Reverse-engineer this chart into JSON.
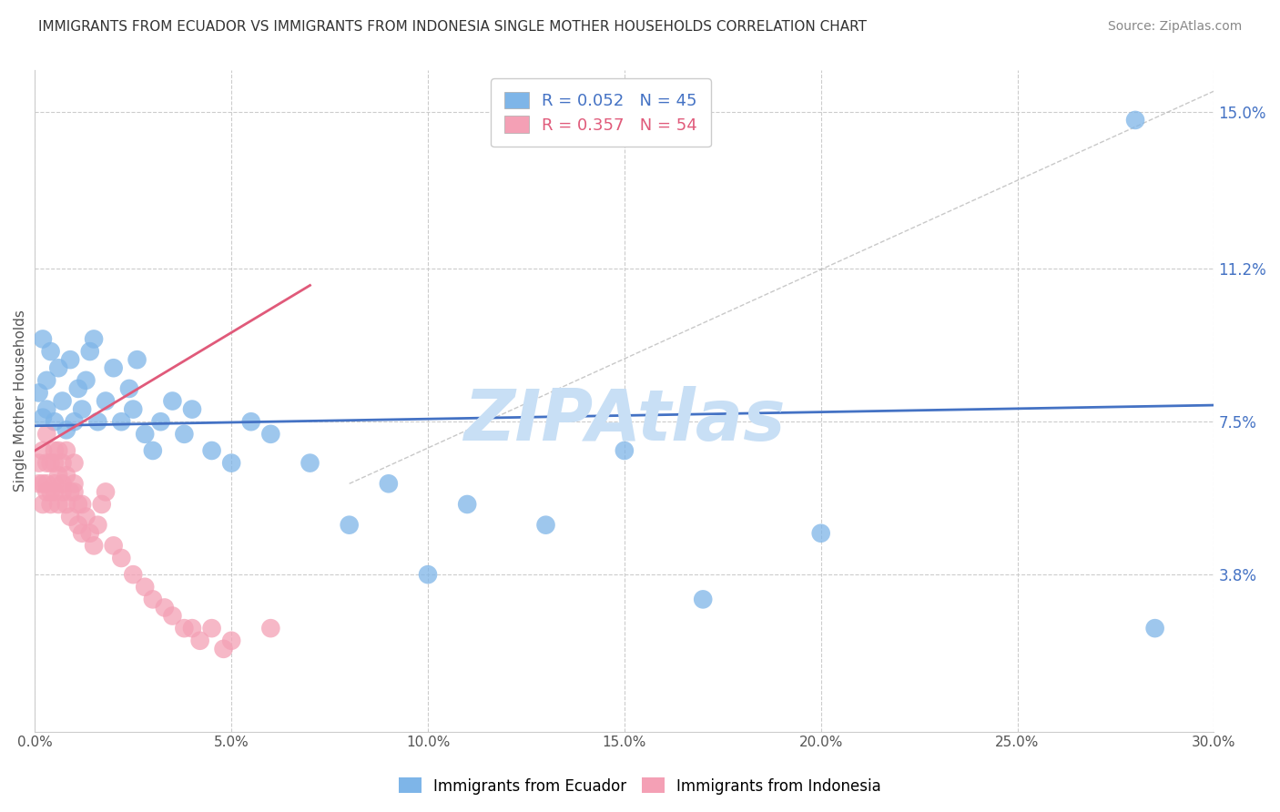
{
  "title": "IMMIGRANTS FROM ECUADOR VS IMMIGRANTS FROM INDONESIA SINGLE MOTHER HOUSEHOLDS CORRELATION CHART",
  "source": "Source: ZipAtlas.com",
  "ylabel": "Single Mother Households",
  "xlim": [
    0.0,
    0.3
  ],
  "ylim": [
    0.0,
    0.16
  ],
  "xticks": [
    0.0,
    0.05,
    0.1,
    0.15,
    0.2,
    0.25,
    0.3
  ],
  "xticklabels": [
    "0.0%",
    "5.0%",
    "10.0%",
    "15.0%",
    "20.0%",
    "25.0%",
    "30.0%"
  ],
  "yticks_right": [
    0.038,
    0.075,
    0.112,
    0.15
  ],
  "yticks_right_labels": [
    "3.8%",
    "7.5%",
    "11.2%",
    "15.0%"
  ],
  "grid_color": "#cccccc",
  "background_color": "#ffffff",
  "ecuador_color": "#7eb5e8",
  "indonesia_color": "#f4a0b5",
  "ecuador_line_color": "#4472c4",
  "indonesia_line_color": "#e05a7a",
  "legend_ecuador_label": "R = 0.052   N = 45",
  "legend_indonesia_label": "R = 0.357   N = 54",
  "watermark": "ZIPAtlas",
  "watermark_color": "#c8dff5",
  "ecuador_x": [
    0.001,
    0.002,
    0.002,
    0.003,
    0.003,
    0.004,
    0.005,
    0.006,
    0.007,
    0.008,
    0.009,
    0.01,
    0.011,
    0.012,
    0.013,
    0.014,
    0.015,
    0.016,
    0.018,
    0.02,
    0.022,
    0.024,
    0.025,
    0.026,
    0.028,
    0.03,
    0.032,
    0.035,
    0.038,
    0.04,
    0.045,
    0.05,
    0.055,
    0.06,
    0.07,
    0.08,
    0.09,
    0.1,
    0.11,
    0.13,
    0.15,
    0.17,
    0.2,
    0.28,
    0.285
  ],
  "ecuador_y": [
    0.082,
    0.076,
    0.095,
    0.078,
    0.085,
    0.092,
    0.075,
    0.088,
    0.08,
    0.073,
    0.09,
    0.075,
    0.083,
    0.078,
    0.085,
    0.092,
    0.095,
    0.075,
    0.08,
    0.088,
    0.075,
    0.083,
    0.078,
    0.09,
    0.072,
    0.068,
    0.075,
    0.08,
    0.072,
    0.078,
    0.068,
    0.065,
    0.075,
    0.072,
    0.065,
    0.05,
    0.06,
    0.038,
    0.055,
    0.05,
    0.068,
    0.032,
    0.048,
    0.148,
    0.025
  ],
  "indonesia_x": [
    0.001,
    0.001,
    0.002,
    0.002,
    0.002,
    0.003,
    0.003,
    0.003,
    0.003,
    0.004,
    0.004,
    0.004,
    0.005,
    0.005,
    0.005,
    0.005,
    0.006,
    0.006,
    0.006,
    0.007,
    0.007,
    0.007,
    0.008,
    0.008,
    0.008,
    0.009,
    0.009,
    0.01,
    0.01,
    0.01,
    0.011,
    0.011,
    0.012,
    0.012,
    0.013,
    0.014,
    0.015,
    0.016,
    0.017,
    0.018,
    0.02,
    0.022,
    0.025,
    0.028,
    0.03,
    0.033,
    0.035,
    0.038,
    0.04,
    0.042,
    0.045,
    0.048,
    0.05,
    0.06
  ],
  "indonesia_y": [
    0.06,
    0.065,
    0.06,
    0.068,
    0.055,
    0.065,
    0.06,
    0.072,
    0.058,
    0.065,
    0.058,
    0.055,
    0.065,
    0.06,
    0.068,
    0.058,
    0.062,
    0.068,
    0.055,
    0.06,
    0.065,
    0.058,
    0.062,
    0.068,
    0.055,
    0.058,
    0.052,
    0.06,
    0.065,
    0.058,
    0.055,
    0.05,
    0.048,
    0.055,
    0.052,
    0.048,
    0.045,
    0.05,
    0.055,
    0.058,
    0.045,
    0.042,
    0.038,
    0.035,
    0.032,
    0.03,
    0.028,
    0.025,
    0.025,
    0.022,
    0.025,
    0.02,
    0.022,
    0.025
  ],
  "diag_line_x": [
    0.08,
    0.3
  ],
  "diag_line_y": [
    0.06,
    0.155
  ],
  "ecuador_trend_x": [
    0.0,
    0.3
  ],
  "ecuador_trend_y": [
    0.074,
    0.079
  ],
  "indonesia_trend_x": [
    0.0,
    0.07
  ],
  "indonesia_trend_y": [
    0.068,
    0.108
  ]
}
